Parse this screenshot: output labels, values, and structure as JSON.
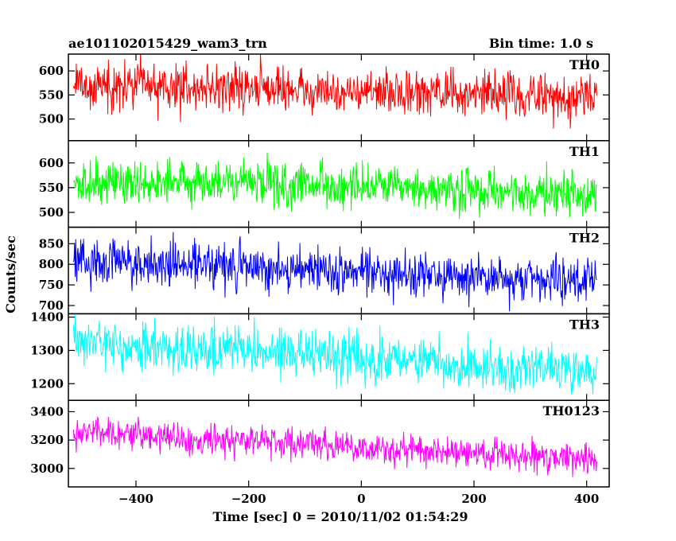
{
  "chart_data": {
    "type": "line",
    "title_left": "ae101102015429_wam3_trn",
    "title_right": "Bin time: 1.0 s",
    "xlabel": "Time [sec] 0 = 2010/11/02 01:54:29",
    "ylabel": "Counts/sec",
    "xlim": [
      -520,
      440
    ],
    "x_range": [
      -511,
      418
    ],
    "x_ticks": [
      -400,
      -200,
      0,
      200,
      400
    ],
    "x_tick_labels": [
      "−400",
      "−200",
      "0",
      "200",
      "400"
    ],
    "grid": false,
    "panels": [
      {
        "name": "TH0",
        "color": "#ff0000",
        "ylim": [
          455,
          635
        ],
        "y_ticks": [
          500,
          550,
          600
        ],
        "y_tick_labels": [
          "500",
          "550",
          "600"
        ],
        "trend": [
          [
            -511,
            570
          ],
          [
            -200,
            565
          ],
          [
            0,
            555
          ],
          [
            200,
            552
          ],
          [
            418,
            545
          ]
        ],
        "noise_sd": 24
      },
      {
        "name": "TH1",
        "color": "#00ff00",
        "ylim": [
          470,
          645
        ],
        "y_ticks": [
          500,
          550,
          600
        ],
        "y_tick_labels": [
          "500",
          "550",
          "600"
        ],
        "trend": [
          [
            -511,
            565
          ],
          [
            -200,
            560
          ],
          [
            0,
            550
          ],
          [
            200,
            540
          ],
          [
            418,
            535
          ]
        ],
        "noise_sd": 23
      },
      {
        "name": "TH2",
        "color": "#0000ff",
        "ylim": [
          680,
          890
        ],
        "y_ticks": [
          700,
          750,
          800,
          850
        ],
        "y_tick_labels": [
          "700",
          "750",
          "800",
          "850"
        ],
        "trend": [
          [
            -511,
            810
          ],
          [
            -200,
            795
          ],
          [
            0,
            780
          ],
          [
            200,
            768
          ],
          [
            418,
            760
          ]
        ],
        "noise_sd": 28
      },
      {
        "name": "TH3",
        "color": "#00ffff",
        "ylim": [
          1150,
          1410
        ],
        "y_ticks": [
          1200,
          1300,
          1400
        ],
        "y_tick_labels": [
          "1200",
          "1300",
          "1400"
        ],
        "trend": [
          [
            -511,
            1320
          ],
          [
            -200,
            1300
          ],
          [
            0,
            1275
          ],
          [
            200,
            1255
          ],
          [
            418,
            1240
          ]
        ],
        "noise_sd": 36
      },
      {
        "name": "TH0123",
        "color": "#ff00ff",
        "ylim": [
          2870,
          3480
        ],
        "y_ticks": [
          3000,
          3200,
          3400
        ],
        "y_tick_labels": [
          "3000",
          "3200",
          "3400"
        ],
        "trend": [
          [
            -511,
            3250
          ],
          [
            -200,
            3200
          ],
          [
            0,
            3140
          ],
          [
            200,
            3110
          ],
          [
            418,
            3070
          ]
        ],
        "noise_sd": 55
      }
    ]
  }
}
